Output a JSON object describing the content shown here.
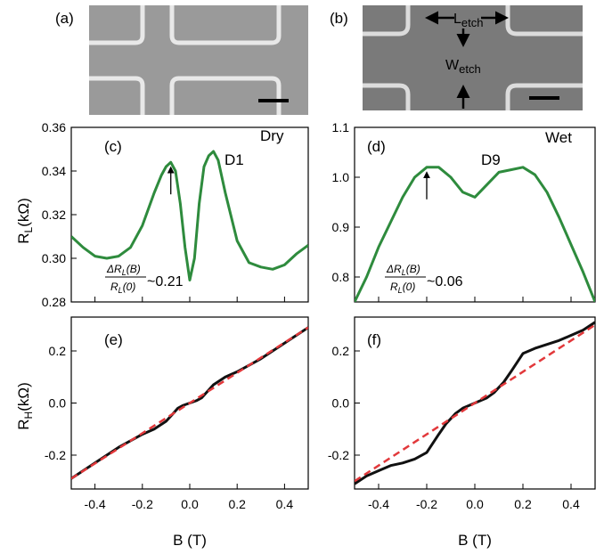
{
  "colors": {
    "rl_curve": "#2e8b3d",
    "rh_curve": "#111111",
    "rh_linear_fit": "#e2383b",
    "sem_background": "#9a9a9a",
    "sem_ridge": "#e8e8e8"
  },
  "images": [
    {
      "panel": "(a)",
      "description_labels": []
    },
    {
      "panel": "(b)",
      "labels": {
        "l_main": "L",
        "l_sub": "etch",
        "w_main": "W",
        "w_sub": "etch"
      }
    }
  ],
  "chart_data": [
    {
      "type": "line",
      "panel": "(c)",
      "device": "D1",
      "condition": "Dry",
      "ylabel": "R",
      "ylabel_sub": "L",
      "ylabel_unit": "(kΩ)",
      "xlim": [
        -0.5,
        0.5
      ],
      "ylim": [
        0.28,
        0.36
      ],
      "yticks": [
        "0.28",
        "0.30",
        "0.32",
        "0.34",
        "0.36"
      ],
      "annotation": "~0.21",
      "annotation_fraction": {
        "num": "ΔR",
        "num_sub": "L",
        "num_arg": "(B)",
        "den": "R",
        "den_sub": "L",
        "den_arg": "(0)"
      },
      "arrow_at_x": -0.08,
      "series": [
        {
          "x": [
            -0.5,
            -0.45,
            -0.4,
            -0.35,
            -0.3,
            -0.25,
            -0.2,
            -0.15,
            -0.12,
            -0.1,
            -0.08,
            -0.06,
            -0.04,
            -0.02,
            0.0,
            0.02,
            0.04,
            0.06,
            0.08,
            0.1,
            0.12,
            0.15,
            0.2,
            0.25,
            0.3,
            0.35,
            0.4,
            0.45,
            0.5
          ],
          "y": [
            0.31,
            0.305,
            0.301,
            0.3,
            0.301,
            0.305,
            0.315,
            0.33,
            0.338,
            0.342,
            0.344,
            0.34,
            0.325,
            0.305,
            0.29,
            0.3,
            0.325,
            0.342,
            0.347,
            0.349,
            0.345,
            0.33,
            0.308,
            0.298,
            0.296,
            0.295,
            0.297,
            0.302,
            0.306
          ]
        }
      ]
    },
    {
      "type": "line",
      "panel": "(d)",
      "device": "D9",
      "condition": "Wet",
      "xlim": [
        -0.5,
        0.5
      ],
      "ylim": [
        0.75,
        1.1
      ],
      "yticks": [
        "0.8",
        "0.9",
        "1.0",
        "1.1"
      ],
      "annotation": "~0.06",
      "annotation_fraction": {
        "num": "ΔR",
        "num_sub": "L",
        "num_arg": "(B)",
        "den": "R",
        "den_sub": "L",
        "den_arg": "(0)"
      },
      "arrow_at_x": -0.2,
      "series": [
        {
          "x": [
            -0.5,
            -0.45,
            -0.4,
            -0.35,
            -0.3,
            -0.25,
            -0.2,
            -0.15,
            -0.1,
            -0.05,
            0.0,
            0.05,
            0.1,
            0.15,
            0.2,
            0.25,
            0.3,
            0.35,
            0.4,
            0.45,
            0.5
          ],
          "y": [
            0.75,
            0.8,
            0.86,
            0.91,
            0.96,
            1.0,
            1.02,
            1.02,
            1.0,
            0.97,
            0.96,
            0.985,
            1.01,
            1.015,
            1.02,
            1.005,
            0.97,
            0.92,
            0.865,
            0.81,
            0.75
          ]
        }
      ]
    },
    {
      "type": "line",
      "panel": "(e)",
      "ylabel": "R",
      "ylabel_sub": "H",
      "ylabel_unit": "(kΩ)",
      "xlabel": "B (T)",
      "xlim": [
        -0.5,
        0.5
      ],
      "ylim": [
        -0.33,
        0.33
      ],
      "xticks": [
        "-0.4",
        "-0.2",
        "0.0",
        "0.2",
        "0.4"
      ],
      "yticks": [
        "-0.2",
        "0.0",
        "0.2"
      ],
      "series": [
        {
          "role": "data",
          "x": [
            -0.5,
            -0.4,
            -0.3,
            -0.2,
            -0.15,
            -0.1,
            -0.07,
            -0.05,
            -0.03,
            0.0,
            0.03,
            0.05,
            0.08,
            0.1,
            0.15,
            0.2,
            0.3,
            0.4,
            0.5
          ],
          "y": [
            -0.29,
            -0.23,
            -0.17,
            -0.12,
            -0.1,
            -0.07,
            -0.04,
            -0.02,
            -0.01,
            0.0,
            0.01,
            0.02,
            0.05,
            0.07,
            0.1,
            0.12,
            0.17,
            0.23,
            0.29
          ]
        },
        {
          "role": "linear-fit",
          "x": [
            -0.5,
            0.5
          ],
          "y": [
            -0.29,
            0.29
          ]
        }
      ]
    },
    {
      "type": "line",
      "panel": "(f)",
      "xlabel": "B (T)",
      "xlim": [
        -0.5,
        0.5
      ],
      "ylim": [
        -0.33,
        0.33
      ],
      "xticks": [
        "-0.4",
        "-0.2",
        "0.0",
        "0.2",
        "0.4"
      ],
      "yticks": [
        "-0.2",
        "0.0",
        "0.2"
      ],
      "series": [
        {
          "role": "data",
          "x": [
            -0.5,
            -0.45,
            -0.4,
            -0.35,
            -0.3,
            -0.25,
            -0.2,
            -0.15,
            -0.12,
            -0.08,
            -0.05,
            0.0,
            0.05,
            0.08,
            0.12,
            0.15,
            0.2,
            0.25,
            0.3,
            0.35,
            0.4,
            0.45,
            0.5
          ],
          "y": [
            -0.31,
            -0.28,
            -0.26,
            -0.24,
            -0.23,
            -0.215,
            -0.19,
            -0.12,
            -0.08,
            -0.04,
            -0.02,
            0.0,
            0.02,
            0.04,
            0.08,
            0.12,
            0.19,
            0.21,
            0.225,
            0.24,
            0.26,
            0.28,
            0.31
          ]
        },
        {
          "role": "linear-fit",
          "x": [
            -0.5,
            0.5
          ],
          "y": [
            -0.3,
            0.3
          ]
        }
      ]
    }
  ]
}
